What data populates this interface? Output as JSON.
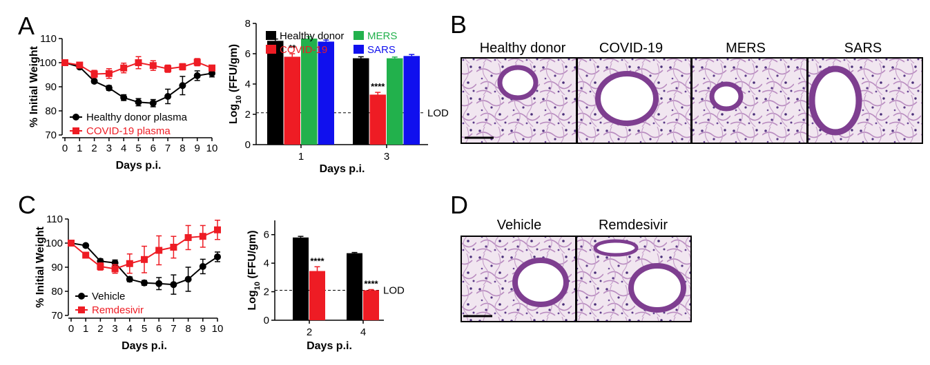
{
  "panels": {
    "A": {
      "label": "A",
      "weight": {
        "ylabel": "% Initial Weight",
        "xlabel": "Days p.i.",
        "x": [
          0,
          1,
          2,
          3,
          4,
          5,
          6,
          7,
          8,
          9,
          10
        ],
        "ylim": [
          70,
          110
        ],
        "yticks": [
          70,
          80,
          90,
          100,
          110
        ],
        "series": [
          {
            "name": "Healthy donor plasma",
            "color": "#000000",
            "marker": "circle",
            "values": [
              100,
              98.2,
              92.3,
              89.5,
              85.5,
              83.6,
              83.2,
              86,
              90.5,
              94.6,
              95.6
            ],
            "errors": [
              0,
              0.5,
              0.8,
              1,
              1.2,
              1.5,
              1.5,
              3,
              3.8,
              2,
              1.5
            ]
          },
          {
            "name": "COVID-19 plasma",
            "color": "#ee1c24",
            "marker": "square",
            "values": [
              100,
              99,
              95.3,
              95.5,
              97.8,
              100,
              98.8,
              97.5,
              98.3,
              100.2,
              97.8
            ],
            "errors": [
              0,
              0.7,
              1.5,
              2,
              2,
              2.5,
              2,
              1.5,
              1.3,
              1.5,
              1
            ]
          }
        ]
      },
      "titer": {
        "ylabel": "Log10 (FFU/gm)",
        "xlabel": "Days p.i.",
        "categories": [
          "1",
          "3"
        ],
        "ylim": [
          0,
          8
        ],
        "yticks": [
          0,
          2,
          4,
          6,
          8
        ],
        "lod": 2.1,
        "lod_label": "LOD",
        "series": [
          {
            "name": "Healthy donor",
            "color": "#000000",
            "values": [
              6.85,
              5.7
            ],
            "errors": [
              0.12,
              0.1
            ]
          },
          {
            "name": "COVID-19",
            "color": "#ee1c24",
            "values": [
              5.8,
              3.3
            ],
            "errors": [
              0.2,
              0.15
            ]
          },
          {
            "name": "MERS",
            "color": "#22b14c",
            "values": [
              7.0,
              5.7
            ],
            "errors": [
              0.12,
              0.08
            ]
          },
          {
            "name": "SARS",
            "color": "#1010ee",
            "values": [
              6.8,
              5.85
            ],
            "errors": [
              0.1,
              0.1
            ]
          }
        ],
        "annotations": [
          {
            "category": "1",
            "series": 1,
            "text": "**"
          },
          {
            "category": "3",
            "series": 1,
            "text": "****"
          }
        ]
      }
    },
    "B": {
      "label": "B",
      "headers": [
        "Healthy donor",
        "COVID-19",
        "MERS",
        "SARS"
      ]
    },
    "C": {
      "label": "C",
      "weight": {
        "ylabel": "% Initial Weight",
        "xlabel": "Days p.i.",
        "x": [
          0,
          1,
          2,
          3,
          4,
          5,
          6,
          7,
          8,
          9,
          10
        ],
        "ylim": [
          70,
          110
        ],
        "yticks": [
          70,
          80,
          90,
          100,
          110
        ],
        "series": [
          {
            "name": "Vehicle",
            "color": "#000000",
            "marker": "circle",
            "values": [
              100,
              99,
              92.5,
              91.8,
              85,
              83.5,
              83.2,
              82.8,
              85,
              90.3,
              94.3
            ],
            "errors": [
              0,
              0.5,
              1,
              1.2,
              1,
              1,
              2.5,
              4,
              5,
              3,
              2
            ]
          },
          {
            "name": "Remdesivir",
            "color": "#ee1c24",
            "marker": "square",
            "values": [
              100,
              95,
              90.3,
              89.3,
              91.5,
              93.2,
              97,
              98.3,
              102.3,
              102.8,
              105.5
            ],
            "errors": [
              0,
              0.8,
              1.5,
              1.8,
              4,
              5.5,
              6,
              4.5,
              5,
              4.5,
              4
            ]
          }
        ]
      },
      "titer": {
        "ylabel": "Log10 (FFU/gm)",
        "xlabel": "Days p.i.",
        "categories": [
          "2",
          "4"
        ],
        "ylim": [
          0,
          7
        ],
        "yticks": [
          0,
          2,
          4,
          6
        ],
        "lod": 2.1,
        "lod_label": "LOD",
        "series": [
          {
            "name": "Vehicle",
            "color": "#000000",
            "values": [
              5.8,
              4.7
            ],
            "errors": [
              0.08,
              0.05
            ]
          },
          {
            "name": "Remdesivir",
            "color": "#ee1c24",
            "values": [
              3.45,
              2.1
            ],
            "errors": [
              0.3,
              0.05
            ]
          }
        ],
        "annotations": [
          {
            "category": "2",
            "series": 1,
            "text": "****"
          },
          {
            "category": "4",
            "series": 1,
            "text": "****"
          }
        ]
      }
    },
    "D": {
      "label": "D",
      "headers": [
        "Vehicle",
        "Remdesivir"
      ]
    }
  }
}
